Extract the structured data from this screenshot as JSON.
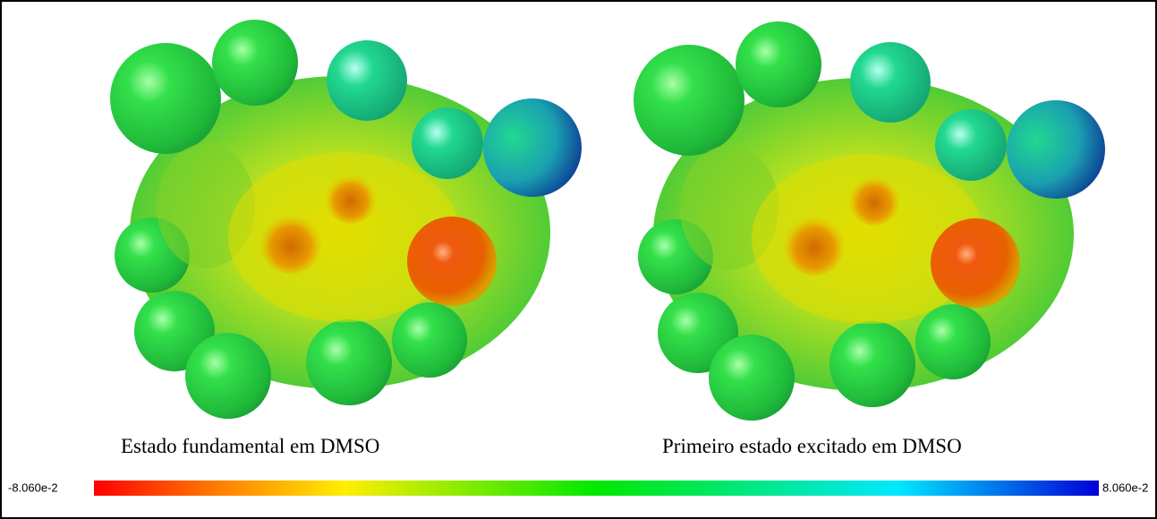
{
  "panels": [
    {
      "caption": "Estado fundamental em DMSO"
    },
    {
      "caption": "Primeiro estado excitado em DMSO"
    }
  ],
  "color_scale": {
    "min_label": "-8.060e-2",
    "max_label": "8.060e-2"
  }
}
